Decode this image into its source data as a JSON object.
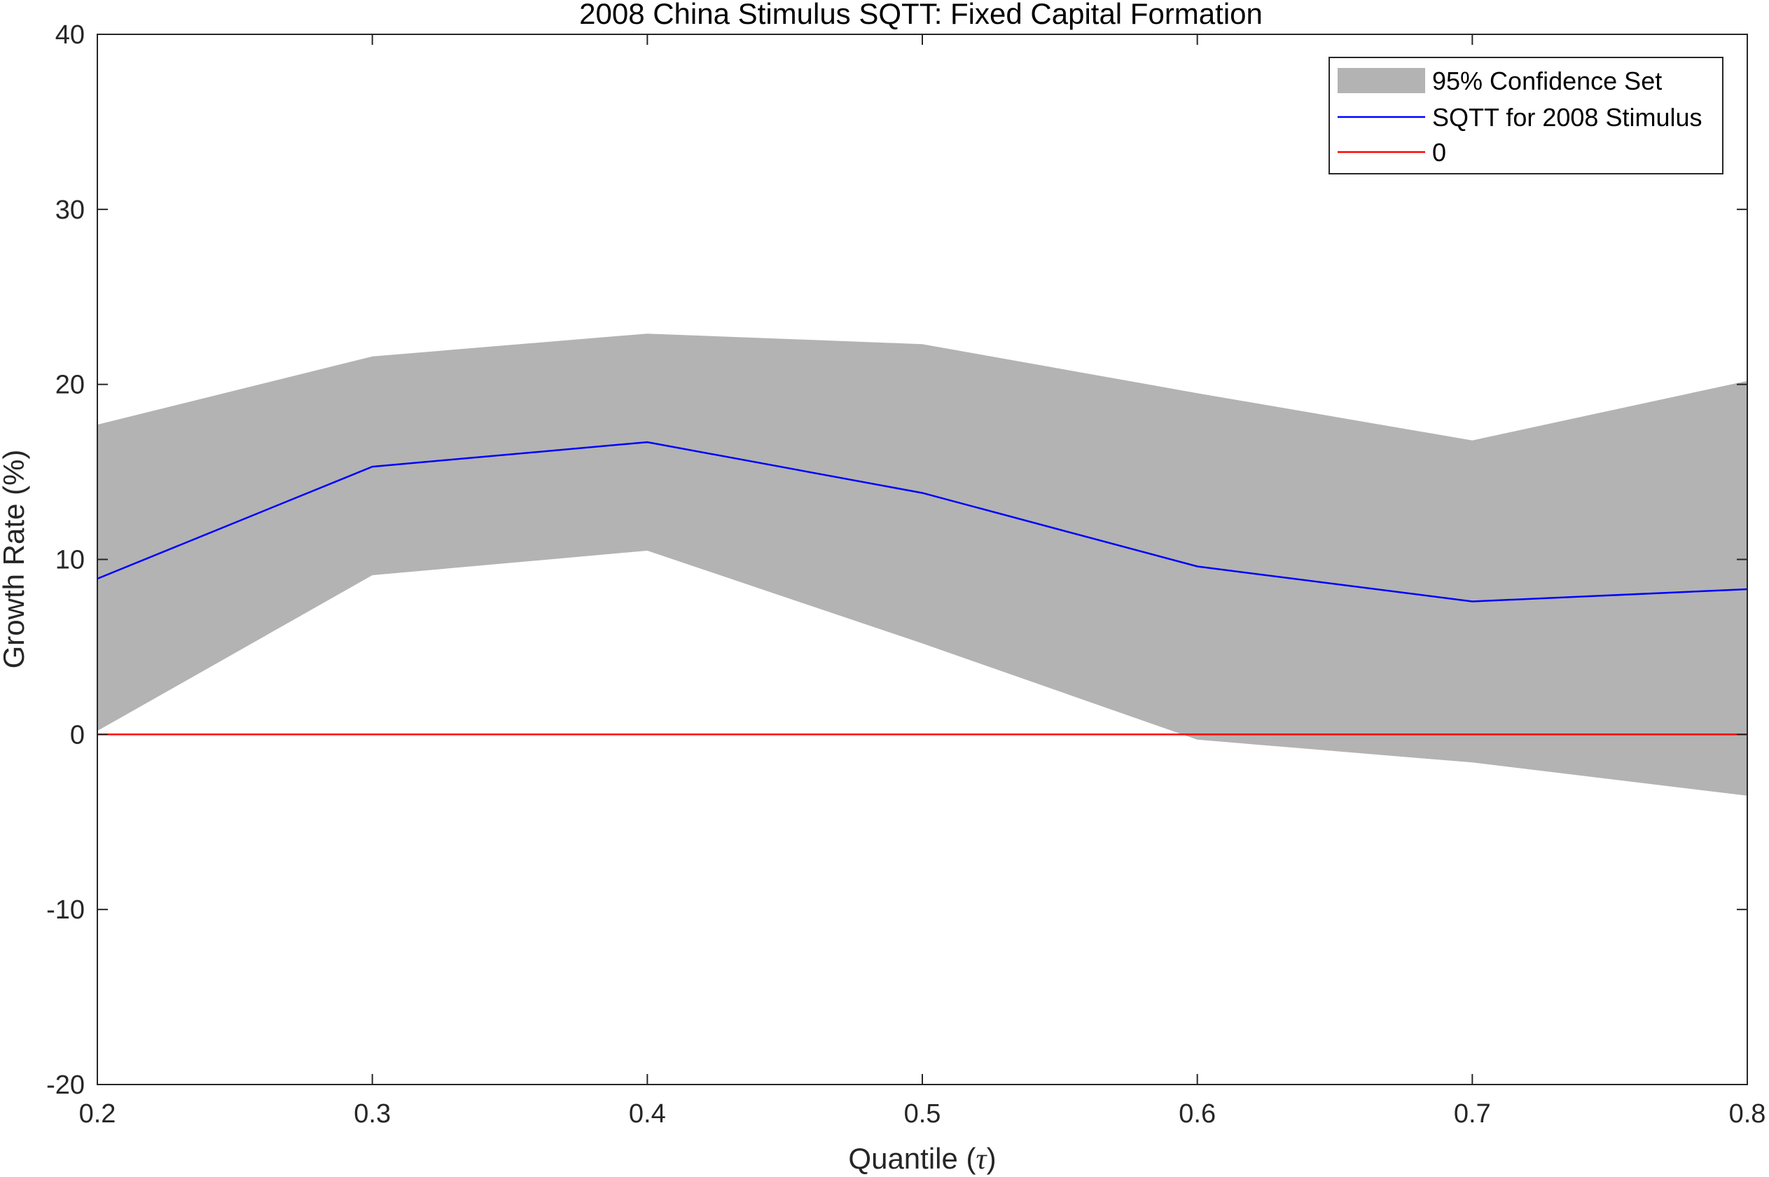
{
  "chart_data": {
    "type": "area",
    "title": "2008 China Stimulus SQTT: Fixed Capital Formation",
    "xlabel_prefix": "Quantile (",
    "xlabel_symbol": "τ",
    "xlabel_suffix": ")",
    "ylabel": "Growth Rate (%)",
    "xlim": [
      0.2,
      0.8
    ],
    "ylim": [
      -20,
      40
    ],
    "xticks": [
      0.2,
      0.3,
      0.4,
      0.5,
      0.6,
      0.7,
      0.8
    ],
    "xtick_labels": [
      "0.2",
      "0.3",
      "0.4",
      "0.5",
      "0.6",
      "0.7",
      "0.8"
    ],
    "yticks": [
      -20,
      -10,
      0,
      10,
      20,
      30,
      40
    ],
    "ytick_labels": [
      "-20",
      "-10",
      "0",
      "10",
      "20",
      "30",
      "40"
    ],
    "x": [
      0.2,
      0.3,
      0.4,
      0.5,
      0.6,
      0.7,
      0.8
    ],
    "series": [
      {
        "name": "95% Confidence Set",
        "kind": "band",
        "color": "#b3b3b3",
        "upper": [
          17.7,
          21.6,
          22.9,
          22.3,
          19.5,
          16.8,
          20.2
        ],
        "lower": [
          0.2,
          9.1,
          10.5,
          5.2,
          -0.3,
          -1.6,
          -3.5
        ]
      },
      {
        "name": "SQTT for 2008 Stimulus",
        "kind": "line",
        "color": "#0000ff",
        "values": [
          8.9,
          15.3,
          16.7,
          13.8,
          9.6,
          7.6,
          8.3
        ]
      },
      {
        "name": "0",
        "kind": "line",
        "color": "#ff0000",
        "values": [
          0,
          0,
          0,
          0,
          0,
          0,
          0
        ]
      }
    ],
    "legend": {
      "position": "top-right",
      "entries": [
        "95% Confidence Set",
        "SQTT for 2008 Stimulus",
        "0"
      ]
    },
    "grid": false
  }
}
